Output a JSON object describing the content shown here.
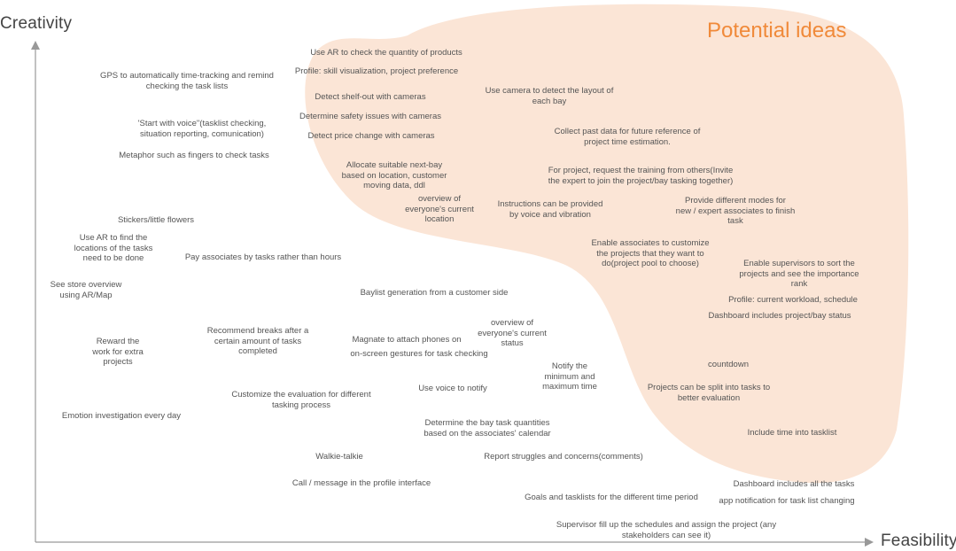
{
  "axes": {
    "y_label": "Creativity",
    "x_label": "Feasibility"
  },
  "region": {
    "title": "Potential ideas",
    "fill_color": "#fbe5d6",
    "title_color": "#f08a3a"
  },
  "ideas": [
    {
      "text": "Use AR to check the quantity of products"
    },
    {
      "text": "Profile: skill visualization, project preference"
    },
    {
      "text": "GPS to automatically time-tracking and  remind\nchecking the task lists"
    },
    {
      "text": "Detect shelf-out with cameras"
    },
    {
      "text": "Use camera to detect the layout of\neach bay"
    },
    {
      "text": "Determine safety issues with cameras"
    },
    {
      "text": "'Start with voice\"(tasklist checking,\nsituation reporting, comunication)"
    },
    {
      "text": "Detect price change with cameras"
    },
    {
      "text": "Collect past data for future reference of\nproject time estimation."
    },
    {
      "text": "Metaphor such as fingers to check tasks"
    },
    {
      "text": "Allocate suitable next-bay\nbased on location, customer\nmoving data, ddl"
    },
    {
      "text": "For project, request the training from others(Invite\nthe expert to join the project/bay tasking together)"
    },
    {
      "text": "overview of\neveryone's current\nlocation"
    },
    {
      "text": "Instructions can be provided\nby voice and vibration"
    },
    {
      "text": "Provide different modes for\nnew / expert associates to finish\ntask"
    },
    {
      "text": "Stickers/little flowers"
    },
    {
      "text": "Use AR to find the\nlocations of the tasks\nneed to be done"
    },
    {
      "text": "Enable associates to customize\nthe projects that they want to\ndo(project pool to choose)"
    },
    {
      "text": "Pay associates by tasks rather than hours"
    },
    {
      "text": "Enable supervisors to sort the\nprojects and see the importance\nrank"
    },
    {
      "text": "See store overview\nusing AR/Map"
    },
    {
      "text": "Baylist generation from a customer side"
    },
    {
      "text": "Profile: current workload, schedule"
    },
    {
      "text": "Dashboard includes project/bay status"
    },
    {
      "text": "overview of\neveryone's current\nstatus"
    },
    {
      "text": "Recommend breaks after a\ncertain amount of tasks\ncompleted"
    },
    {
      "text": "Reward the\nwork for extra\nprojects"
    },
    {
      "text": "Magnate to attach phones on"
    },
    {
      "text": "on-screen gestures for task checking"
    },
    {
      "text": "countdown"
    },
    {
      "text": "Notify the\nminimum and\nmaximum time"
    },
    {
      "text": "Use voice to notify"
    },
    {
      "text": "Customize the evaluation for different\ntasking process"
    },
    {
      "text": "Projects can be split into tasks to\nbetter evaluation"
    },
    {
      "text": "Emotion investigation every day"
    },
    {
      "text": "Determine the bay task quantities\nbased on the associates' calendar"
    },
    {
      "text": "Include time into tasklist"
    },
    {
      "text": "Walkie-talkie"
    },
    {
      "text": "Report struggles and concerns(comments)"
    },
    {
      "text": "Call / message in the profile interface"
    },
    {
      "text": "Dashboard includes all the tasks"
    },
    {
      "text": "Goals and tasklists for the different time period"
    },
    {
      "text": "app notification for task list changing"
    },
    {
      "text": "Supervisor fill up the schedules and assign the project (any\nstakeholders can see it)"
    }
  ]
}
